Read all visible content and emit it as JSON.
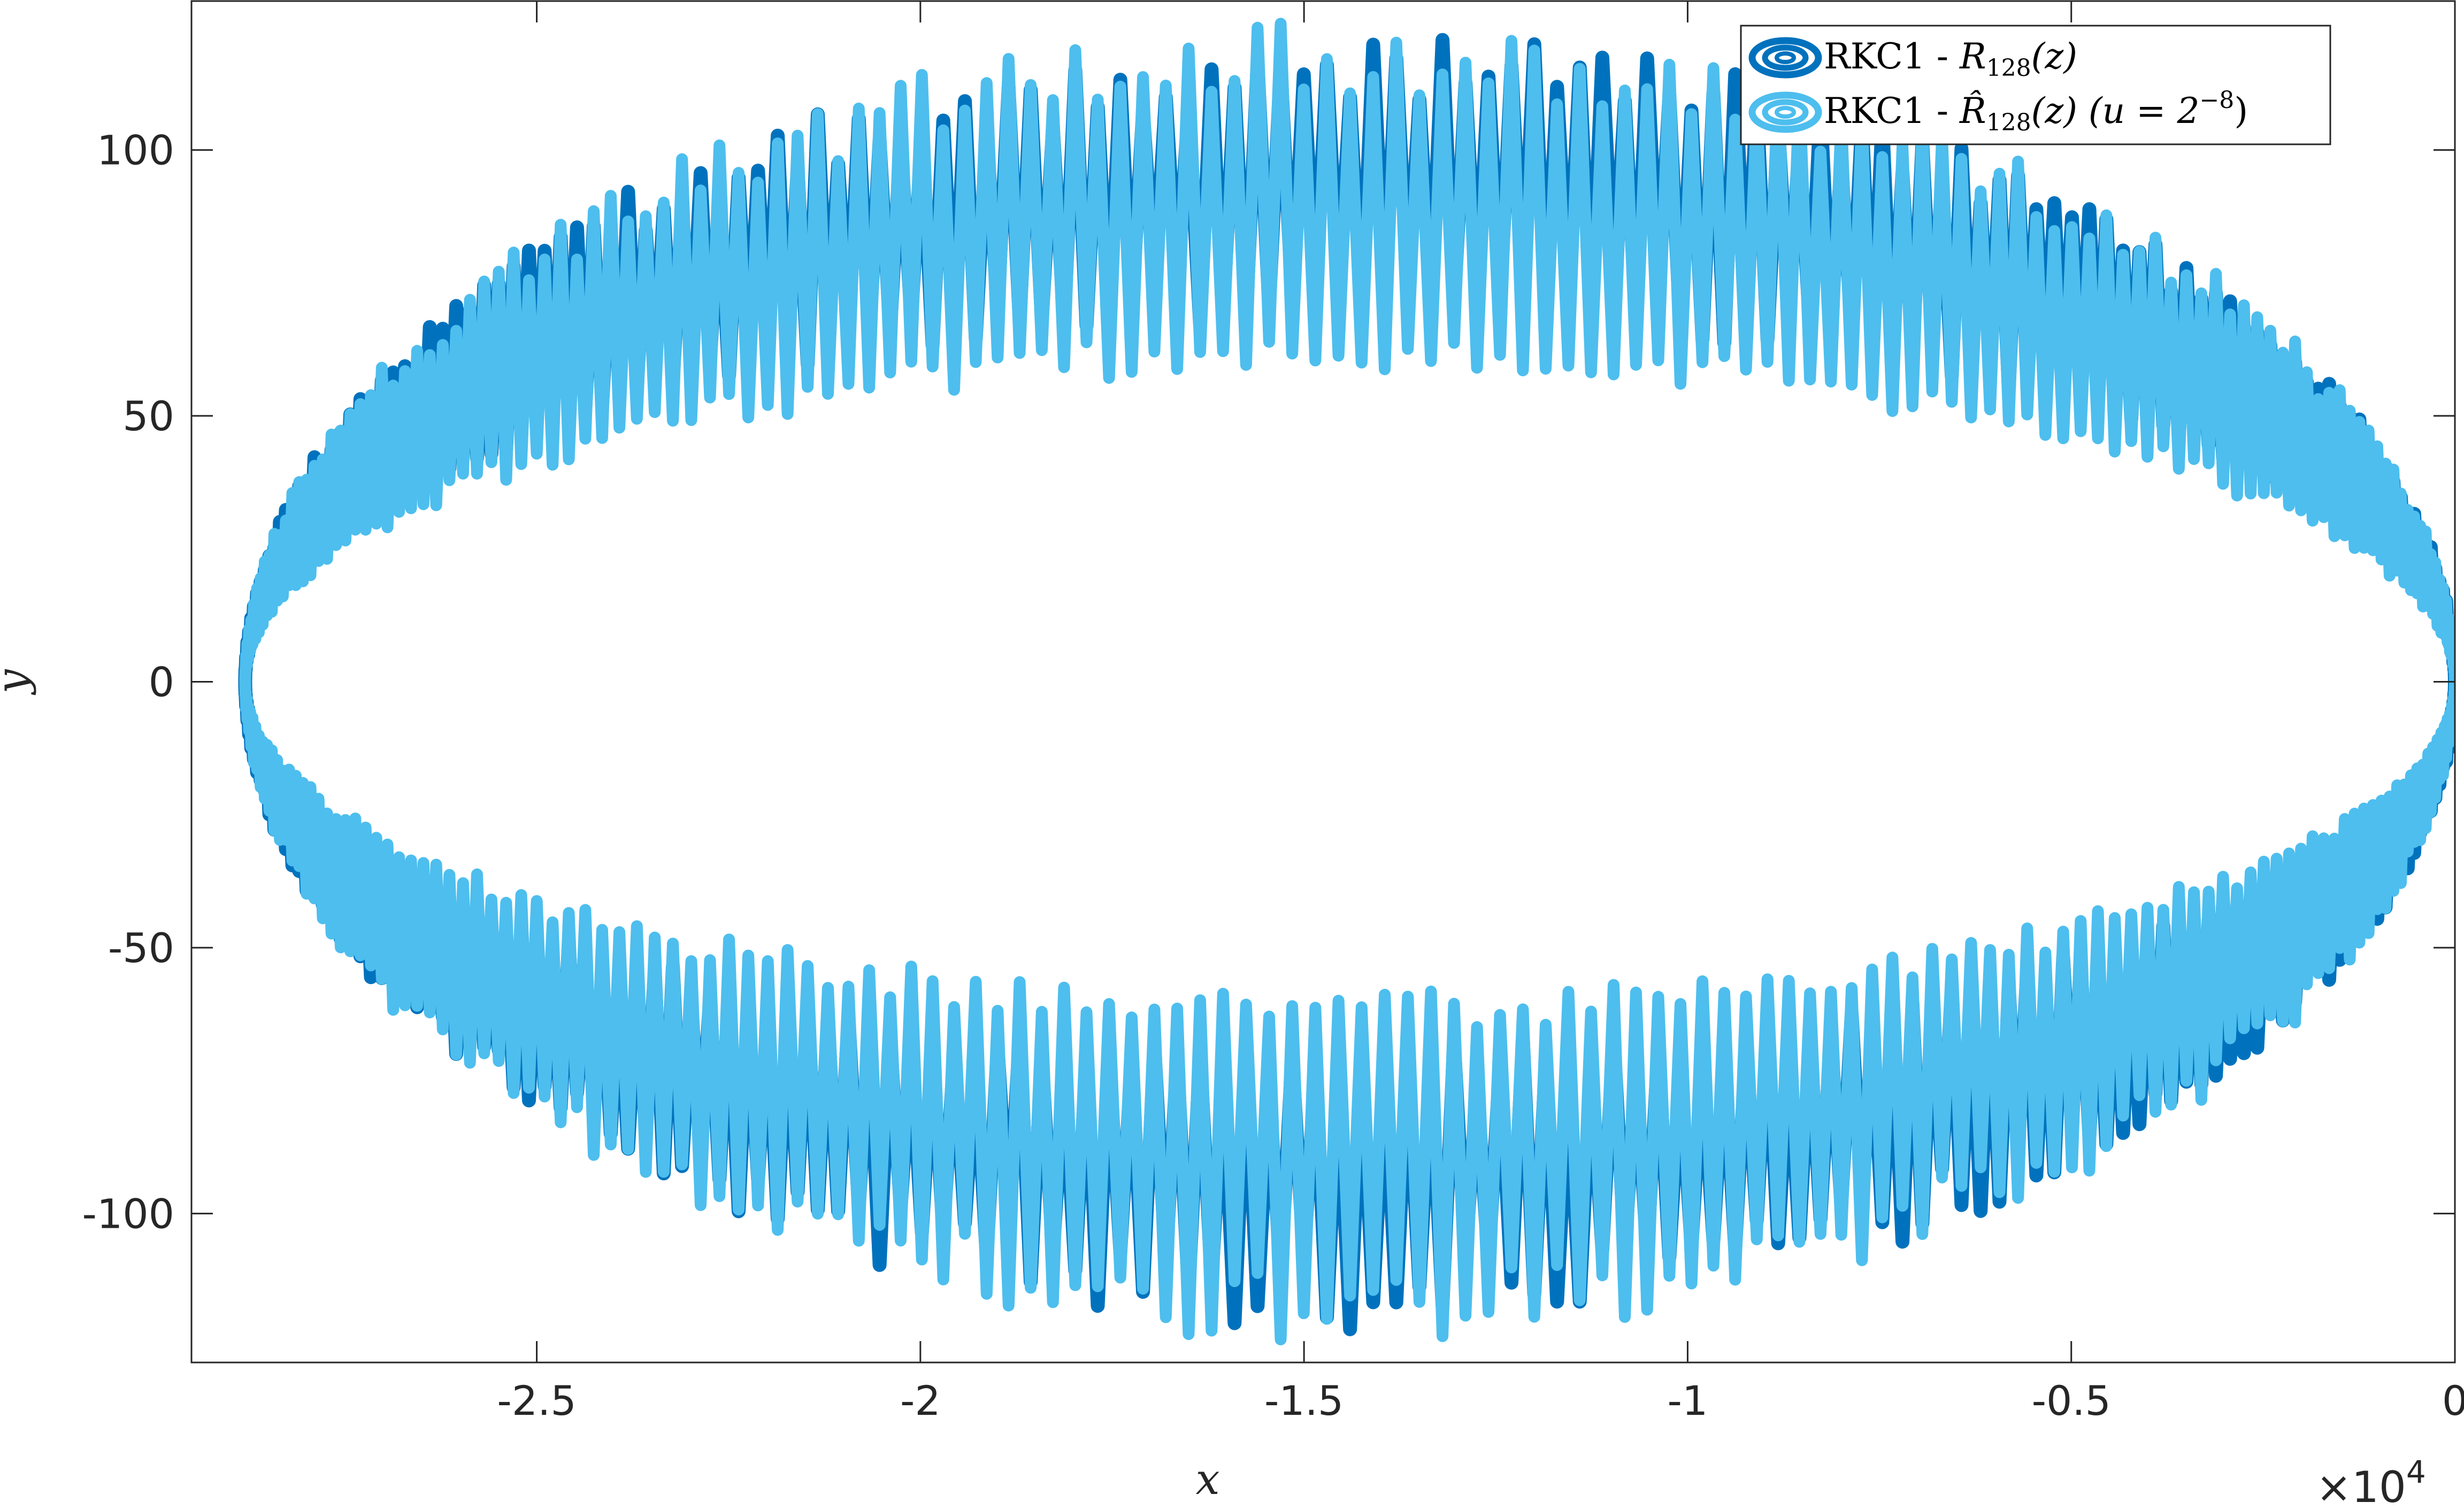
{
  "chart_data": {
    "type": "line",
    "title": "",
    "xlabel": "x",
    "ylabel": "y",
    "x_exponent_base": "×10",
    "x_exponent_power": "4",
    "xlim": [
      -2.95,
      0
    ],
    "ylim": [
      -128,
      128
    ],
    "x_scale_factor": 10000,
    "xticks": [
      -2.5,
      -2,
      -1.5,
      -1,
      -0.5,
      0
    ],
    "xtick_labels": [
      "-2.5",
      "-2",
      "-1.5",
      "-1",
      "-0.5",
      "0"
    ],
    "yticks": [
      100,
      50,
      0,
      -50,
      -100
    ],
    "ytick_labels": [
      "100",
      "50",
      "0",
      "-50",
      "-100"
    ],
    "grid": false,
    "legend_position": "top-right",
    "series": [
      {
        "name": "RKC1 - R128(z)",
        "legend_main": "RKC1 - ",
        "legend_R": "R",
        "legend_sub": "128",
        "legend_z": "(z)",
        "color": "#0072BD",
        "center_x": -14400,
        "semi_axis_x": 14400,
        "y_amplitude_outer": 115,
        "y_amplitude_inner": 72,
        "oscillations": 150
      },
      {
        "name": "RKC1 - R̂128(z) (u = 2^-8)",
        "legend_main": "RKC1 - ",
        "legend_R": "R̂",
        "legend_sub": "128",
        "legend_z": "(z) (u = 2",
        "legend_sup": "−8",
        "legend_close": ")",
        "color": "#4DBEEE",
        "center_x": -14400,
        "semi_axis_x": 14400,
        "y_amplitude_outer": 117,
        "y_amplitude_inner": 62,
        "oscillations": 150
      }
    ]
  }
}
